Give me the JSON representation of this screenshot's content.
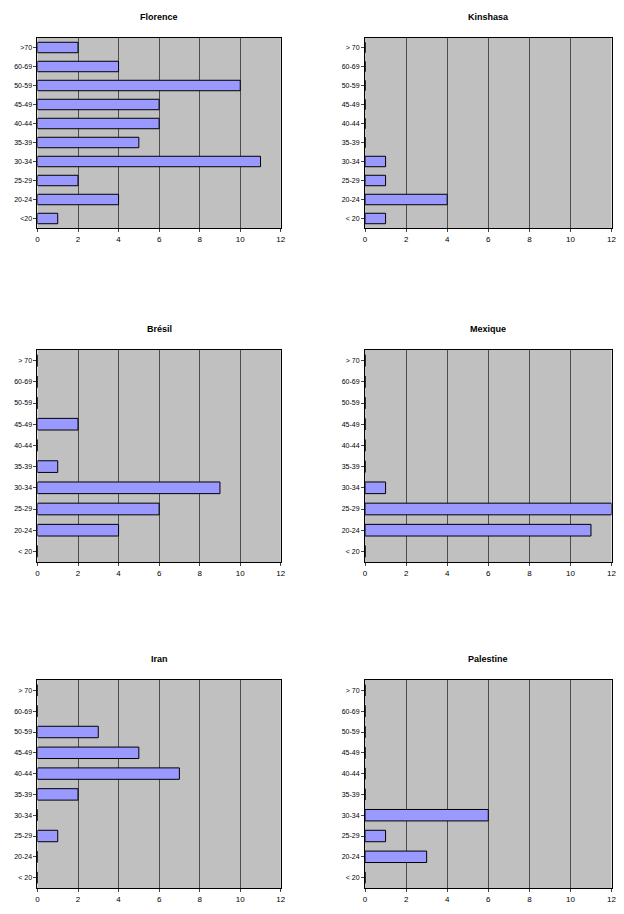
{
  "chart_data": [
    {
      "type": "bar",
      "orientation": "horizontal",
      "title": "Florence",
      "categories": [
        "<20",
        "20-24",
        "25-29",
        "30-34",
        "35-39",
        "40-44",
        "45-49",
        "50-59",
        "60-69",
        ">70"
      ],
      "values": [
        1,
        4,
        2,
        11,
        5,
        6,
        6,
        10,
        4,
        2
      ],
      "color": "#9999ff",
      "xlim": [
        0,
        12
      ],
      "xticks": [
        0,
        2,
        4,
        6,
        8,
        10,
        12
      ],
      "grid": true
    },
    {
      "type": "bar",
      "orientation": "horizontal",
      "title": "Kinshasa",
      "categories": [
        "< 20",
        "20-24",
        "25-29",
        "30-34",
        "35-39",
        "40-44",
        "45-49",
        "50-59",
        "60-69",
        "> 70"
      ],
      "values": [
        1,
        4,
        1,
        1,
        0,
        0,
        0,
        0,
        0,
        0
      ],
      "color": "#9999ff",
      "xlim": [
        0,
        12
      ],
      "xticks": [
        0,
        2,
        4,
        6,
        8,
        10,
        12
      ],
      "grid": true
    },
    {
      "type": "bar",
      "orientation": "horizontal",
      "title": "Brésil",
      "categories": [
        "< 20",
        "20-24",
        "25-29",
        "30-34",
        "35-39",
        "40-44",
        "45-49",
        "50-59",
        "60-69",
        "> 70"
      ],
      "values": [
        0,
        4,
        6,
        9,
        1,
        0,
        2,
        0,
        0,
        0
      ],
      "color": "#9999ff",
      "xlim": [
        0,
        12
      ],
      "xticks": [
        0,
        2,
        4,
        6,
        8,
        10,
        12
      ],
      "grid": true
    },
    {
      "type": "bar",
      "orientation": "horizontal",
      "title": "Mexique",
      "categories": [
        "< 20",
        "20-24",
        "25-29",
        "30-34",
        "35-39",
        "40-44",
        "45-49",
        "50-59",
        "60-69",
        "> 70"
      ],
      "values": [
        0,
        11,
        12,
        1,
        0,
        0,
        0,
        0,
        0,
        0
      ],
      "color": "#9999ff",
      "xlim": [
        0,
        12
      ],
      "xticks": [
        0,
        2,
        4,
        6,
        8,
        10,
        12
      ],
      "grid": true
    },
    {
      "type": "bar",
      "orientation": "horizontal",
      "title": "Iran",
      "categories": [
        "< 20",
        "20-24",
        "25-29",
        "30-34",
        "35-39",
        "40-44",
        "45-49",
        "50-59",
        "60-69",
        "> 70"
      ],
      "values": [
        0,
        0,
        1,
        0,
        2,
        7,
        5,
        3,
        0,
        0
      ],
      "color": "#9999ff",
      "xlim": [
        0,
        12
      ],
      "xticks": [
        0,
        2,
        4,
        6,
        8,
        10,
        12
      ],
      "grid": true
    },
    {
      "type": "bar",
      "orientation": "horizontal",
      "title": "Palestine",
      "categories": [
        "< 20",
        "20-24",
        "25-29",
        "30-34",
        "35-39",
        "40-44",
        "45-49",
        "50-59",
        "60-69",
        "> 70"
      ],
      "values": [
        0,
        3,
        1,
        6,
        0,
        0,
        0,
        0,
        0,
        0
      ],
      "color": "#9999ff",
      "xlim": [
        0,
        12
      ],
      "xticks": [
        0,
        2,
        4,
        6,
        8,
        10,
        12
      ],
      "grid": true
    }
  ]
}
